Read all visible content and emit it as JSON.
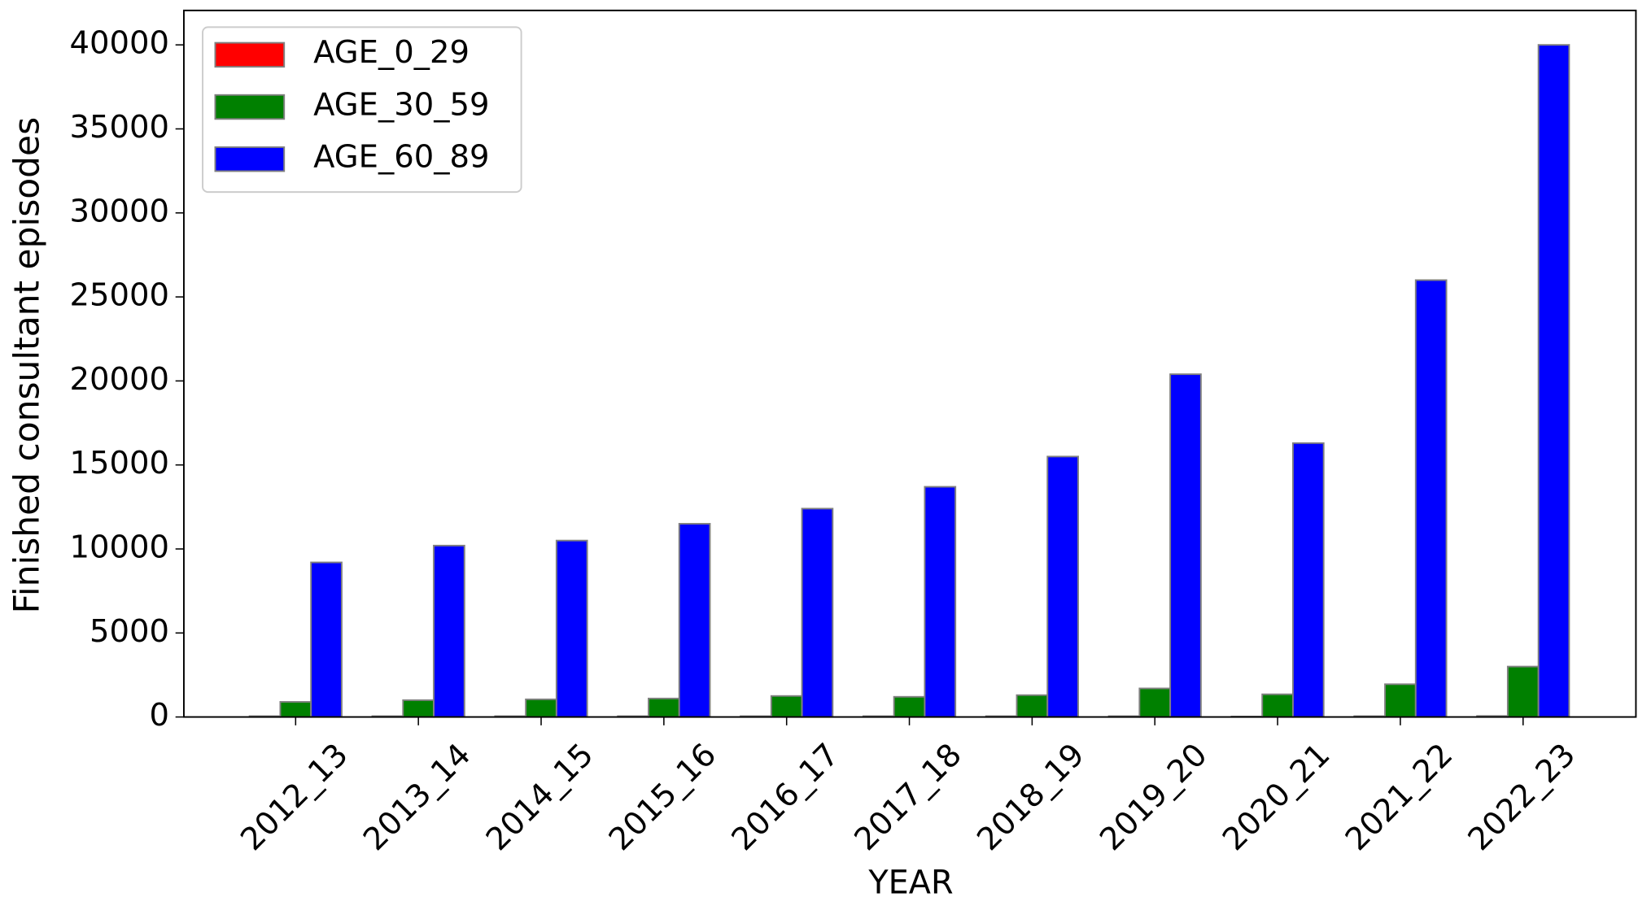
{
  "chart_data": {
    "type": "bar",
    "xlabel": "YEAR",
    "ylabel": "Finished consultant episodes",
    "categories": [
      "2012_13",
      "2013_14",
      "2014_15",
      "2015_16",
      "2016_17",
      "2017_18",
      "2018_19",
      "2019_20",
      "2020_21",
      "2021_22",
      "2022_23"
    ],
    "series": [
      {
        "name": "AGE_0_29",
        "color": "#ff0000",
        "values": [
          50,
          50,
          50,
          50,
          50,
          50,
          50,
          50,
          30,
          50,
          60
        ]
      },
      {
        "name": "AGE_30_59",
        "color": "#008000",
        "values": [
          900,
          1000,
          1050,
          1100,
          1250,
          1200,
          1300,
          1700,
          1350,
          1950,
          3000
        ]
      },
      {
        "name": "AGE_60_89",
        "color": "#0000ff",
        "values": [
          9200,
          10200,
          10500,
          11500,
          12400,
          13700,
          15500,
          20400,
          16300,
          26000,
          40000
        ]
      }
    ],
    "ylim": [
      0,
      42050
    ],
    "yticks": [
      0,
      5000,
      10000,
      15000,
      20000,
      25000,
      30000,
      35000,
      40000
    ],
    "legend": "upper left"
  }
}
